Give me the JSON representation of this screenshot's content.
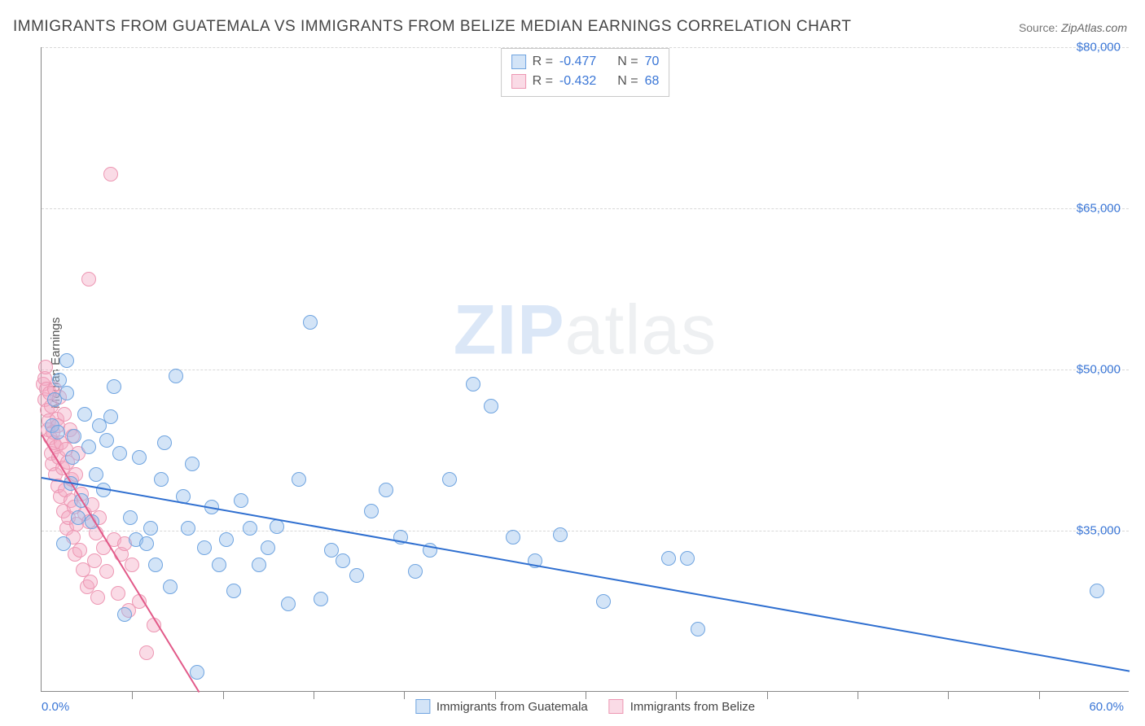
{
  "title": "IMMIGRANTS FROM GUATEMALA VS IMMIGRANTS FROM BELIZE MEDIAN EARNINGS CORRELATION CHART",
  "source_label": "Source: ",
  "source_name": "ZipAtlas.com",
  "ylabel": "Median Earnings",
  "watermark_a": "ZIP",
  "watermark_b": "atlas",
  "chart": {
    "type": "scatter",
    "xlim": [
      0,
      60
    ],
    "ylim": [
      20000,
      80000
    ],
    "xticks_minor": [
      5,
      10,
      15,
      20,
      25,
      30,
      35,
      40,
      45,
      50,
      55
    ],
    "xticks_labeled": [
      {
        "v": 0,
        "label": "0.0%"
      },
      {
        "v": 60,
        "label": "60.0%"
      }
    ],
    "yticks": [
      {
        "v": 35000,
        "label": "$35,000"
      },
      {
        "v": 50000,
        "label": "$50,000"
      },
      {
        "v": 65000,
        "label": "$65,000"
      },
      {
        "v": 80000,
        "label": "$80,000"
      }
    ],
    "grid_color": "#d8d8d8",
    "axis_color": "#888888",
    "tick_label_color": "#3a76d6",
    "marker_radius": 9,
    "marker_border_width": 1,
    "series": {
      "guatemala": {
        "label": "Immigrants from Guatemala",
        "fill": "rgba(150,190,235,0.42)",
        "stroke": "#6fa4e0",
        "trend_color": "#2f6fd0",
        "trend": {
          "x1": 0,
          "y1": 40000,
          "x2": 60,
          "y2": 22000
        },
        "R": "-0.477",
        "N": "70",
        "points": [
          [
            0.6,
            44800
          ],
          [
            0.7,
            47200
          ],
          [
            0.9,
            44200
          ],
          [
            1.0,
            49000
          ],
          [
            1.2,
            33800
          ],
          [
            1.4,
            47800
          ],
          [
            1.4,
            50800
          ],
          [
            1.6,
            39400
          ],
          [
            1.7,
            41800
          ],
          [
            1.8,
            43800
          ],
          [
            2.0,
            36200
          ],
          [
            2.2,
            37800
          ],
          [
            2.4,
            45800
          ],
          [
            2.6,
            42800
          ],
          [
            2.8,
            35800
          ],
          [
            3.0,
            40200
          ],
          [
            3.2,
            44800
          ],
          [
            3.4,
            38800
          ],
          [
            3.6,
            43400
          ],
          [
            3.8,
            45600
          ],
          [
            4.0,
            48400
          ],
          [
            4.3,
            42200
          ],
          [
            4.6,
            27200
          ],
          [
            4.9,
            36200
          ],
          [
            5.2,
            34200
          ],
          [
            5.4,
            41800
          ],
          [
            5.8,
            33800
          ],
          [
            6.0,
            35200
          ],
          [
            6.3,
            31800
          ],
          [
            6.6,
            39800
          ],
          [
            6.8,
            43200
          ],
          [
            7.1,
            29800
          ],
          [
            7.4,
            49400
          ],
          [
            7.8,
            38200
          ],
          [
            8.1,
            35200
          ],
          [
            8.3,
            41200
          ],
          [
            8.6,
            21800
          ],
          [
            9.0,
            33400
          ],
          [
            9.4,
            37200
          ],
          [
            9.8,
            31800
          ],
          [
            10.2,
            34200
          ],
          [
            10.6,
            29400
          ],
          [
            11.0,
            37800
          ],
          [
            11.5,
            35200
          ],
          [
            12.0,
            31800
          ],
          [
            12.5,
            33400
          ],
          [
            13.0,
            35400
          ],
          [
            13.6,
            28200
          ],
          [
            14.2,
            39800
          ],
          [
            14.8,
            54400
          ],
          [
            15.4,
            28600
          ],
          [
            16.0,
            33200
          ],
          [
            16.6,
            32200
          ],
          [
            17.4,
            30800
          ],
          [
            18.2,
            36800
          ],
          [
            19.0,
            38800
          ],
          [
            19.8,
            34400
          ],
          [
            20.6,
            31200
          ],
          [
            21.4,
            33200
          ],
          [
            22.5,
            39800
          ],
          [
            23.8,
            48600
          ],
          [
            24.8,
            46600
          ],
          [
            26.0,
            34400
          ],
          [
            27.2,
            32200
          ],
          [
            28.6,
            34600
          ],
          [
            31.0,
            28400
          ],
          [
            34.6,
            32400
          ],
          [
            35.6,
            32400
          ],
          [
            36.2,
            25800
          ],
          [
            58.2,
            29400
          ]
        ]
      },
      "belize": {
        "label": "Immigrants from Belize",
        "fill": "rgba(244,170,195,0.42)",
        "stroke": "#ed97b3",
        "trend_color": "#e25a89",
        "trend": {
          "x1": 0,
          "y1": 44000,
          "x2": 8.7,
          "y2": 20000
        },
        "R": "-0.432",
        "N": "68",
        "points": [
          [
            0.1,
            48600
          ],
          [
            0.16,
            47200
          ],
          [
            0.2,
            49200
          ],
          [
            0.24,
            50200
          ],
          [
            0.28,
            48200
          ],
          [
            0.32,
            46200
          ],
          [
            0.36,
            44400
          ],
          [
            0.4,
            45200
          ],
          [
            0.44,
            47800
          ],
          [
            0.48,
            43600
          ],
          [
            0.52,
            42200
          ],
          [
            0.56,
            46600
          ],
          [
            0.6,
            41200
          ],
          [
            0.64,
            44200
          ],
          [
            0.68,
            43200
          ],
          [
            0.72,
            48200
          ],
          [
            0.76,
            40200
          ],
          [
            0.8,
            42800
          ],
          [
            0.84,
            45400
          ],
          [
            0.88,
            39200
          ],
          [
            0.92,
            44800
          ],
          [
            0.96,
            41800
          ],
          [
            1.0,
            47400
          ],
          [
            1.05,
            38200
          ],
          [
            1.1,
            43200
          ],
          [
            1.15,
            40800
          ],
          [
            1.2,
            36800
          ],
          [
            1.25,
            45800
          ],
          [
            1.3,
            38800
          ],
          [
            1.35,
            42600
          ],
          [
            1.4,
            35200
          ],
          [
            1.45,
            41400
          ],
          [
            1.5,
            36200
          ],
          [
            1.55,
            44400
          ],
          [
            1.6,
            37800
          ],
          [
            1.65,
            39800
          ],
          [
            1.7,
            43800
          ],
          [
            1.75,
            34400
          ],
          [
            1.8,
            37200
          ],
          [
            1.85,
            32800
          ],
          [
            1.9,
            40200
          ],
          [
            1.95,
            35600
          ],
          [
            2.0,
            42200
          ],
          [
            2.1,
            33200
          ],
          [
            2.2,
            38400
          ],
          [
            2.3,
            31400
          ],
          [
            2.4,
            36600
          ],
          [
            2.5,
            29800
          ],
          [
            2.6,
            35800
          ],
          [
            2.7,
            30200
          ],
          [
            2.8,
            37400
          ],
          [
            2.9,
            32200
          ],
          [
            3.0,
            34800
          ],
          [
            3.1,
            28800
          ],
          [
            3.2,
            36200
          ],
          [
            3.4,
            33400
          ],
          [
            3.6,
            31200
          ],
          [
            3.8,
            68200
          ],
          [
            4.0,
            34200
          ],
          [
            4.2,
            29200
          ],
          [
            4.4,
            32800
          ],
          [
            4.6,
            33800
          ],
          [
            4.8,
            27600
          ],
          [
            5.0,
            31800
          ],
          [
            5.4,
            28400
          ],
          [
            5.8,
            23600
          ],
          [
            6.2,
            26200
          ],
          [
            2.6,
            58400
          ]
        ]
      }
    }
  },
  "stats_box": {
    "R_label": "R =",
    "N_label": "N ="
  }
}
